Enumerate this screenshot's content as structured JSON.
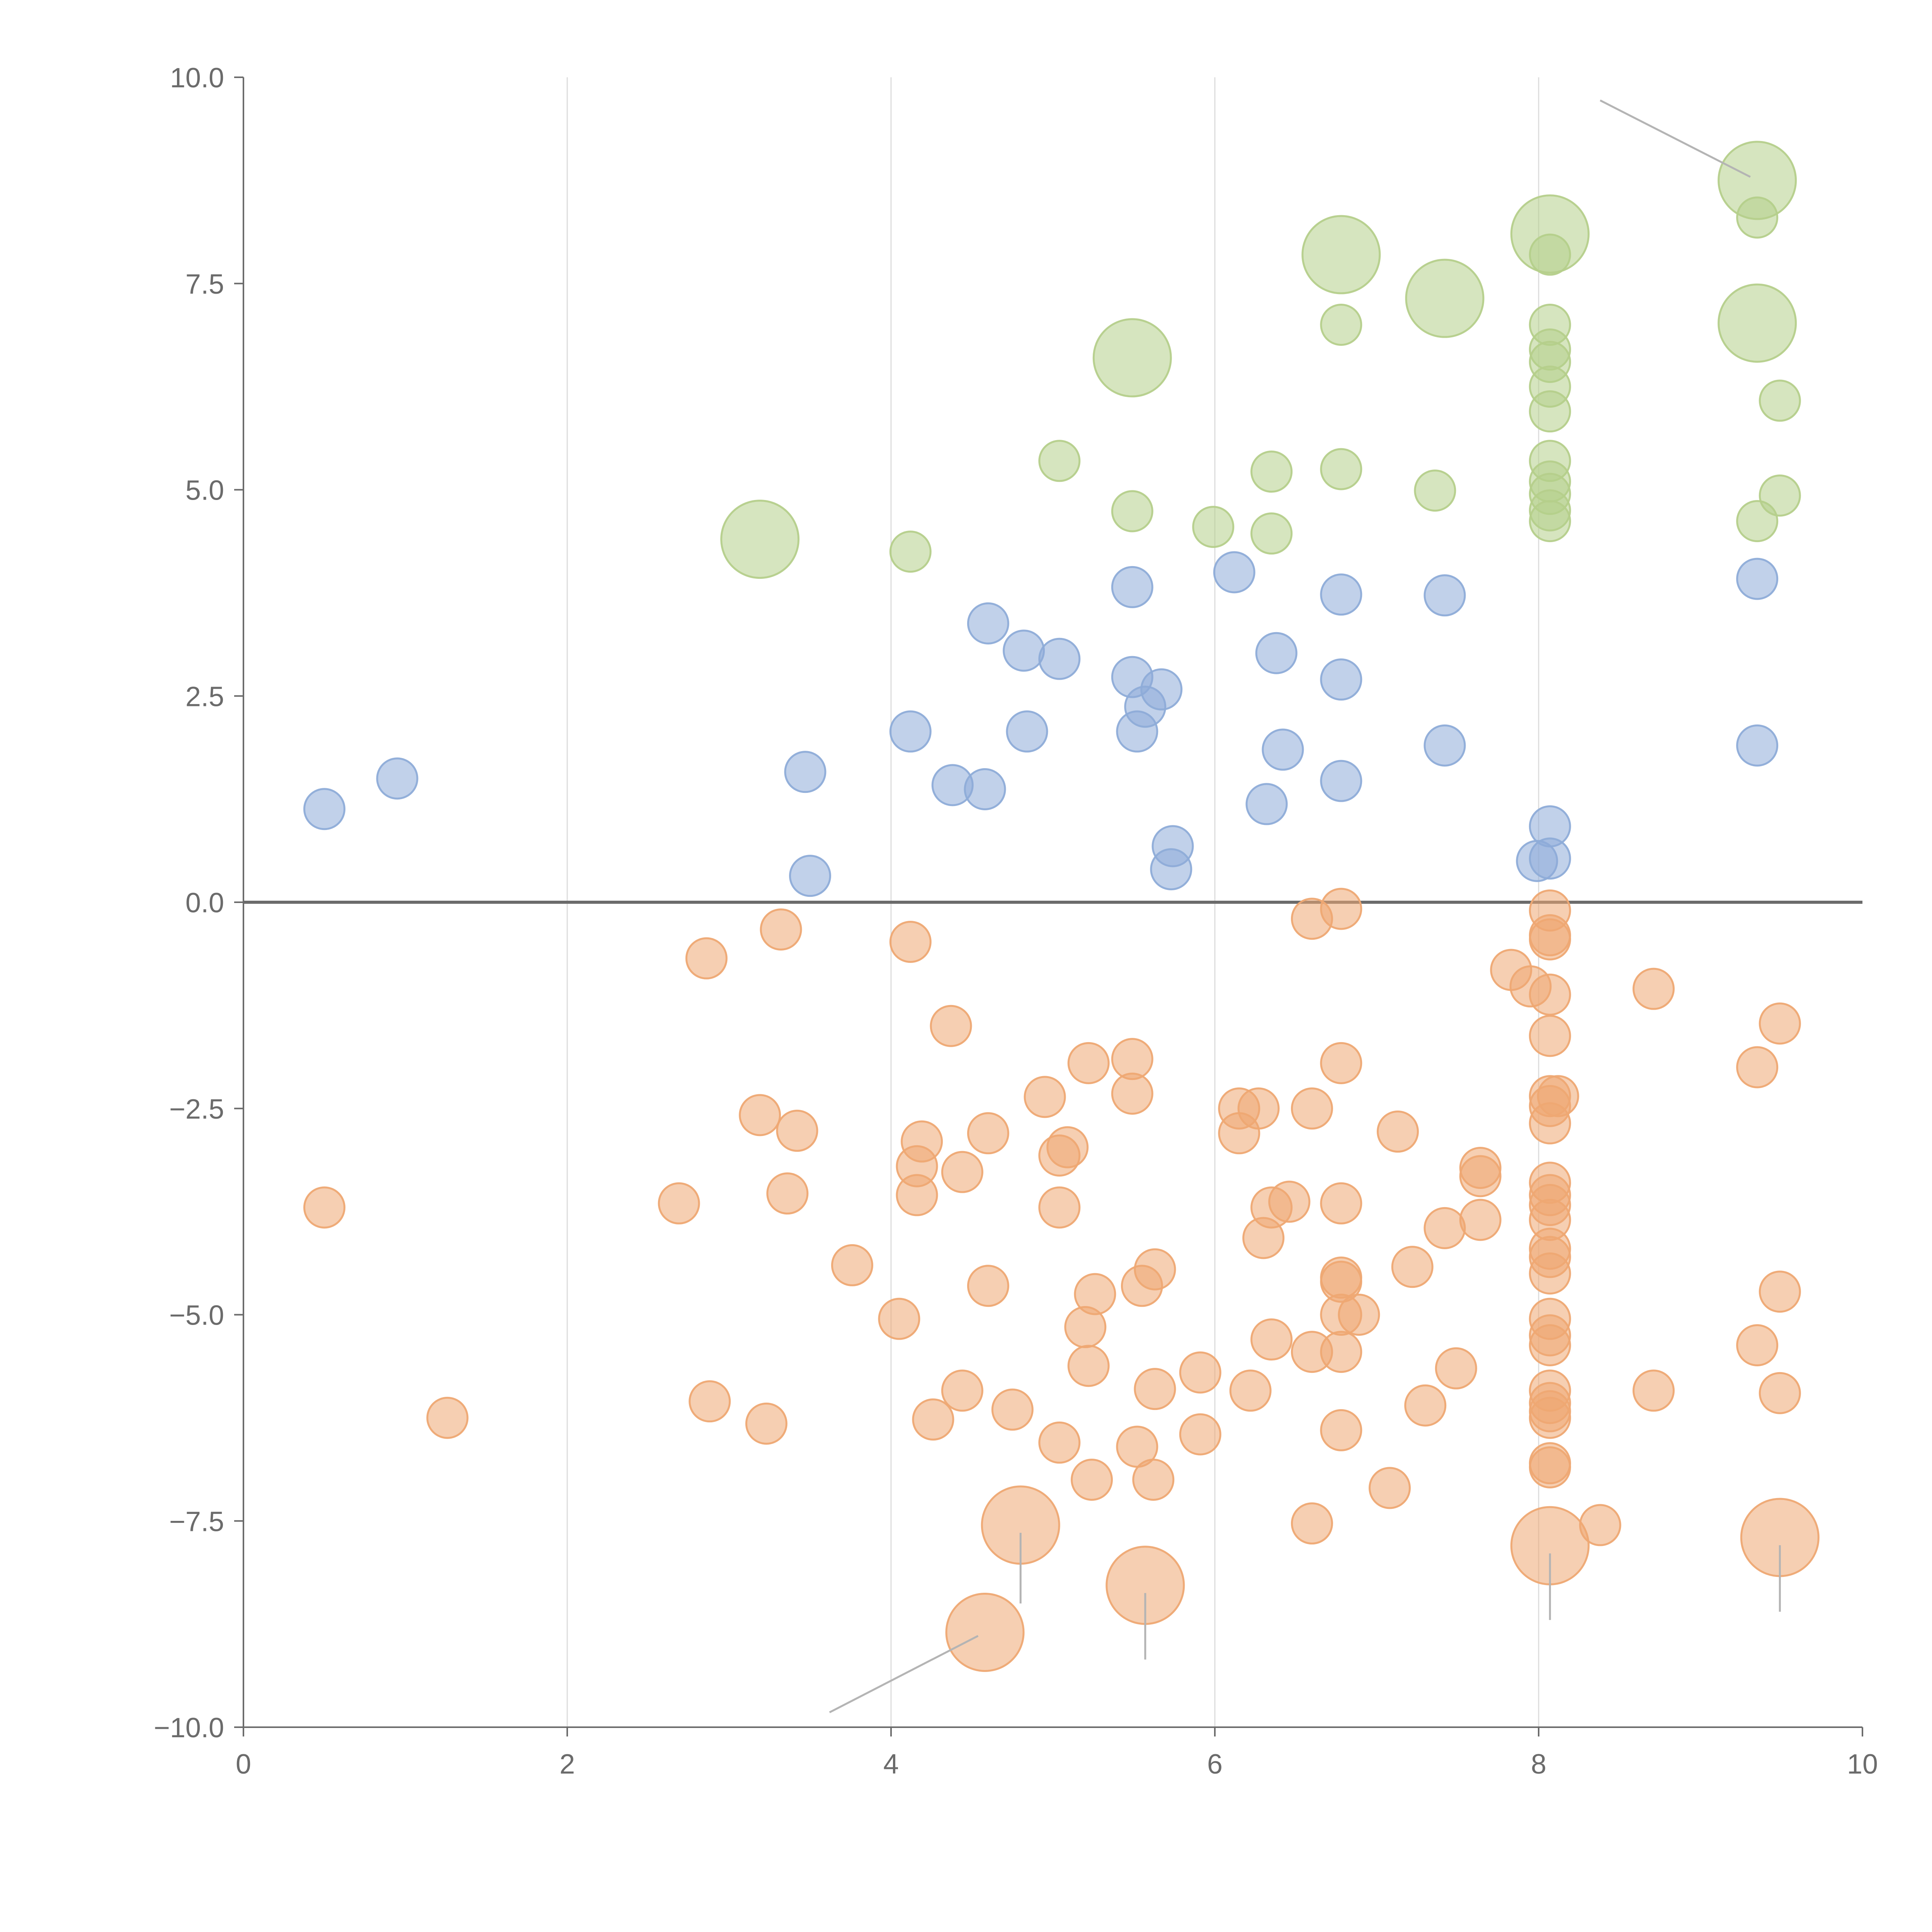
{
  "chart_data": {
    "type": "scatter",
    "title": "",
    "xlabel": "",
    "ylabel": "",
    "xlim": [
      0,
      10
    ],
    "ylim": [
      -10,
      10
    ],
    "x_ticks": [
      "0",
      "2",
      "4",
      "6",
      "8",
      "10"
    ],
    "y_ticks": [
      "−10.0",
      "−7.5",
      "−5.0",
      "−2.5",
      "0.0",
      "2.5",
      "5.0",
      "7.5",
      "10.0"
    ],
    "grid": "vertical",
    "zero_line": true,
    "colors": {
      "green": "#b5cf8b",
      "blue": "#8eacd8",
      "orange": "#eea873",
      "leader": "#b4b4b4",
      "axis": "#6b6b6b"
    },
    "series": [
      {
        "name": "green",
        "color": "#b5cf8b",
        "points": [
          [
            4.12,
            4.25
          ],
          [
            5.04,
            5.35
          ],
          [
            5.49,
            4.74
          ],
          [
            5.99,
            4.55
          ],
          [
            6.35,
            5.22
          ],
          [
            6.35,
            4.47
          ],
          [
            6.78,
            5.25
          ],
          [
            6.78,
            7.0
          ],
          [
            7.36,
            4.99
          ],
          [
            8.07,
            7.0
          ],
          [
            8.07,
            6.7
          ],
          [
            8.07,
            6.55
          ],
          [
            8.07,
            6.25
          ],
          [
            8.07,
            5.95
          ],
          [
            8.07,
            5.35
          ],
          [
            8.07,
            5.1
          ],
          [
            8.07,
            4.95
          ],
          [
            8.07,
            4.75
          ],
          [
            8.07,
            4.62
          ],
          [
            8.07,
            7.85
          ],
          [
            9.35,
            8.3
          ],
          [
            9.35,
            4.62
          ],
          [
            9.49,
            6.08
          ],
          [
            9.49,
            4.93
          ]
        ],
        "large_points": [
          [
            3.19,
            4.4
          ],
          [
            5.49,
            6.6
          ],
          [
            6.78,
            7.85
          ],
          [
            7.42,
            7.32
          ],
          [
            8.07,
            8.1
          ],
          [
            9.35,
            8.75
          ],
          [
            9.35,
            7.02
          ]
        ]
      },
      {
        "name": "blue",
        "color": "#8eacd8",
        "points": [
          [
            0.5,
            1.13
          ],
          [
            0.95,
            1.5
          ],
          [
            3.47,
            1.58
          ],
          [
            3.5,
            0.32
          ],
          [
            4.12,
            2.07
          ],
          [
            4.38,
            1.42
          ],
          [
            4.58,
            1.37
          ],
          [
            4.6,
            3.38
          ],
          [
            4.82,
            3.05
          ],
          [
            4.84,
            2.07
          ],
          [
            5.04,
            2.95
          ],
          [
            5.49,
            3.82
          ],
          [
            5.49,
            2.73
          ],
          [
            5.52,
            2.07
          ],
          [
            5.57,
            2.37
          ],
          [
            5.67,
            2.58
          ],
          [
            5.74,
            0.68
          ],
          [
            5.73,
            0.4
          ],
          [
            6.12,
            4.0
          ],
          [
            6.32,
            1.19
          ],
          [
            6.38,
            3.02
          ],
          [
            6.42,
            1.85
          ],
          [
            6.78,
            3.73
          ],
          [
            6.78,
            2.7
          ],
          [
            6.78,
            1.47
          ],
          [
            7.42,
            3.72
          ],
          [
            7.42,
            1.9
          ],
          [
            7.99,
            0.5
          ],
          [
            8.07,
            0.92
          ],
          [
            8.07,
            0.53
          ],
          [
            9.35,
            3.92
          ],
          [
            9.35,
            1.9
          ]
        ]
      },
      {
        "name": "orange",
        "color": "#eea873",
        "points": [
          [
            0.5,
            -3.7
          ],
          [
            1.26,
            -6.25
          ],
          [
            2.69,
            -3.65
          ],
          [
            2.86,
            -0.68
          ],
          [
            2.88,
            -6.05
          ],
          [
            3.19,
            -2.58
          ],
          [
            3.23,
            -6.32
          ],
          [
            3.32,
            -0.33
          ],
          [
            3.36,
            -3.53
          ],
          [
            3.42,
            -2.77
          ],
          [
            3.76,
            -4.4
          ],
          [
            4.05,
            -5.05
          ],
          [
            4.12,
            -0.48
          ],
          [
            4.16,
            -3.2
          ],
          [
            4.16,
            -3.55
          ],
          [
            4.19,
            -2.9
          ],
          [
            4.26,
            -6.27
          ],
          [
            4.37,
            -1.5
          ],
          [
            4.44,
            -5.92
          ],
          [
            4.44,
            -3.27
          ],
          [
            4.6,
            -2.8
          ],
          [
            4.6,
            -4.65
          ],
          [
            4.75,
            -6.15
          ],
          [
            4.95,
            -2.36
          ],
          [
            5.04,
            -3.07
          ],
          [
            5.04,
            -3.7
          ],
          [
            5.04,
            -6.55
          ],
          [
            5.09,
            -2.97
          ],
          [
            5.2,
            -5.15
          ],
          [
            5.22,
            -1.95
          ],
          [
            5.22,
            -5.62
          ],
          [
            5.24,
            -7.0
          ],
          [
            5.26,
            -4.75
          ],
          [
            5.49,
            -1.9
          ],
          [
            5.49,
            -2.32
          ],
          [
            5.52,
            -6.6
          ],
          [
            5.55,
            -4.65
          ],
          [
            5.62,
            -7.0
          ],
          [
            5.63,
            -5.9
          ],
          [
            5.63,
            -4.45
          ],
          [
            5.91,
            -5.7
          ],
          [
            5.91,
            -6.45
          ],
          [
            6.15,
            -2.5
          ],
          [
            6.15,
            -2.8
          ],
          [
            6.22,
            -5.92
          ],
          [
            6.27,
            -2.5
          ],
          [
            6.3,
            -4.07
          ],
          [
            6.35,
            -3.7
          ],
          [
            6.35,
            -5.3
          ],
          [
            6.46,
            -3.63
          ],
          [
            6.6,
            -0.2
          ],
          [
            6.6,
            -2.5
          ],
          [
            6.6,
            -5.45
          ],
          [
            6.6,
            -7.53
          ],
          [
            6.78,
            -0.08
          ],
          [
            6.78,
            -1.95
          ],
          [
            6.78,
            -3.65
          ],
          [
            6.78,
            -4.55
          ],
          [
            6.78,
            -4.6
          ],
          [
            6.78,
            -5.0
          ],
          [
            6.78,
            -5.45
          ],
          [
            6.78,
            -6.4
          ],
          [
            6.89,
            -5.0
          ],
          [
            7.08,
            -7.1
          ],
          [
            7.13,
            -2.78
          ],
          [
            7.22,
            -4.42
          ],
          [
            7.3,
            -6.1
          ],
          [
            7.42,
            -3.95
          ],
          [
            7.49,
            -5.65
          ],
          [
            7.64,
            -3.22
          ],
          [
            7.64,
            -3.32
          ],
          [
            7.64,
            -3.85
          ],
          [
            7.83,
            -0.82
          ],
          [
            7.95,
            -1.02
          ],
          [
            8.07,
            -0.1
          ],
          [
            8.07,
            -0.4
          ],
          [
            8.07,
            -0.45
          ],
          [
            8.07,
            -1.12
          ],
          [
            8.07,
            -1.62
          ],
          [
            8.07,
            -2.35
          ],
          [
            8.07,
            -2.47
          ],
          [
            8.07,
            -2.68
          ],
          [
            8.12,
            -2.35
          ],
          [
            8.07,
            -3.4
          ],
          [
            8.07,
            -3.55
          ],
          [
            8.07,
            -3.67
          ],
          [
            8.07,
            -3.85
          ],
          [
            8.07,
            -4.2
          ],
          [
            8.07,
            -4.3
          ],
          [
            8.07,
            -4.5
          ],
          [
            8.07,
            -5.05
          ],
          [
            8.07,
            -5.25
          ],
          [
            8.07,
            -5.37
          ],
          [
            8.07,
            -5.92
          ],
          [
            8.07,
            -6.07
          ],
          [
            8.07,
            -6.17
          ],
          [
            8.07,
            -6.25
          ],
          [
            8.07,
            -6.8
          ],
          [
            8.07,
            -6.85
          ],
          [
            8.38,
            -7.55
          ],
          [
            8.71,
            -1.05
          ],
          [
            8.71,
            -5.92
          ],
          [
            9.35,
            -2.0
          ],
          [
            9.35,
            -5.37
          ],
          [
            9.49,
            -1.47
          ],
          [
            9.49,
            -4.72
          ],
          [
            9.49,
            -5.95
          ]
        ],
        "large_points": [
          [
            4.58,
            -8.85
          ],
          [
            4.8,
            -7.55
          ],
          [
            5.57,
            -8.28
          ],
          [
            8.07,
            -7.8
          ],
          [
            9.49,
            -7.7
          ]
        ]
      }
    ],
    "annotations": [
      {
        "series": "green",
        "point": [
          9.35,
          8.75
        ],
        "line_end": [
          8.38,
          9.72
        ],
        "text": ""
      },
      {
        "series": "orange",
        "point": [
          4.58,
          -8.85
        ],
        "line_end": [
          3.62,
          -9.82
        ],
        "text": ""
      },
      {
        "series": "orange",
        "point": [
          4.8,
          -7.55
        ],
        "line_end": [
          4.8,
          -8.5
        ],
        "text": ""
      },
      {
        "series": "orange",
        "point": [
          5.57,
          -8.28
        ],
        "line_end": [
          5.57,
          -9.18
        ],
        "text": ""
      },
      {
        "series": "orange",
        "point": [
          8.07,
          -7.8
        ],
        "line_end": [
          8.07,
          -8.7
        ],
        "text": ""
      },
      {
        "series": "orange",
        "point": [
          9.49,
          -7.7
        ],
        "line_end": [
          9.49,
          -8.6
        ],
        "text": ""
      }
    ]
  }
}
